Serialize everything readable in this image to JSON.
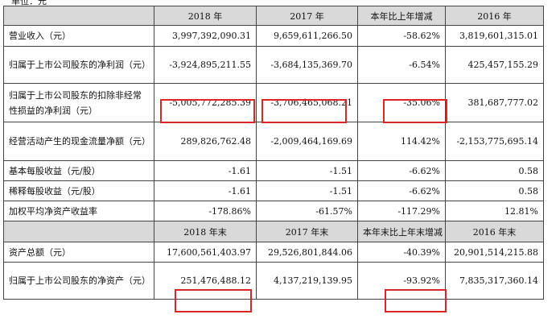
{
  "top_cut_text": "单位：元",
  "colors": {
    "header_bg": "#d9d9d9",
    "highlight": "#e02424",
    "border": "#444444"
  },
  "header_1": [
    "2018 年",
    "2017 年",
    "本年比上年增减",
    "2016 年"
  ],
  "rows_1": [
    {
      "label": "营业收入（元）",
      "values": [
        "3,997,392,090.31",
        "9,659,611,266.50",
        "-58.62%",
        "3,819,601,315.01"
      ]
    },
    {
      "label": "归属于上市公司股东的净利润（元）",
      "values": [
        "-3,924,895,211.55",
        "-3,684,135,369.70",
        "-6.54%",
        "425,457,155.29"
      ]
    },
    {
      "label": "归属于上市公司股东的扣除非经常性损益的净利润（元）",
      "values": [
        "-5,005,772,285.39",
        "-3,706,465,068.21",
        "-35.06%",
        "381,687,777.02"
      ]
    },
    {
      "label": "经营活动产生的现金流量净额（元）",
      "values": [
        "289,826,762.48",
        "-2,009,464,169.69",
        "114.42%",
        "-2,153,775,695.14"
      ]
    },
    {
      "label": "基本每股收益（元/股）",
      "values": [
        "-1.61",
        "-1.51",
        "-6.62%",
        "0.58"
      ]
    },
    {
      "label": "稀释每股收益（元/股）",
      "values": [
        "-1.61",
        "-1.51",
        "-6.62%",
        "0.58"
      ]
    },
    {
      "label": "加权平均净资产收益率",
      "values": [
        "-178.86%",
        "-61.57%",
        "-117.29%",
        "12.81%"
      ]
    }
  ],
  "header_2": [
    "2018 年末",
    "2017 年末",
    "本年末比上年末增减",
    "2016 年末"
  ],
  "rows_2": [
    {
      "label": "资产总额（元）",
      "values": [
        "17,600,561,403.97",
        "29,526,801,844.06",
        "-40.39%",
        "20,901,514,215.88"
      ]
    },
    {
      "label": "归属于上市公司股东的净资产（元）",
      "values": [
        "251,476,488.12",
        "4,137,219,139.95",
        "-93.92%",
        "7,835,317,360.14"
      ]
    }
  ]
}
